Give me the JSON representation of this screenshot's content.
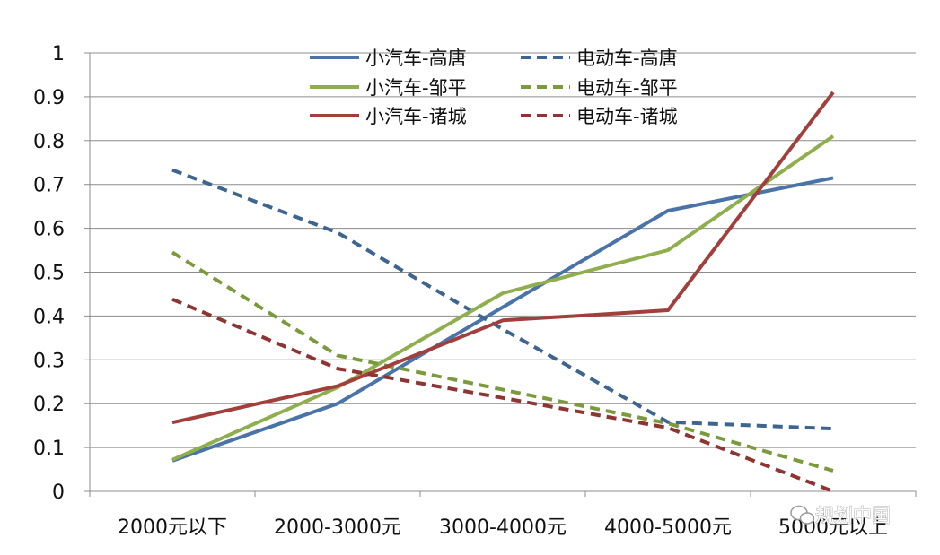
{
  "chart_data": {
    "type": "line",
    "title": "",
    "xlabel": "",
    "ylabel": "",
    "categories": [
      "2000元以下",
      "2000-3000元",
      "3000-4000元",
      "4000-5000元",
      "5000元以上"
    ],
    "ylim": [
      0,
      1
    ],
    "yticks": [
      "0",
      "0.1",
      "0.2",
      "0.3",
      "0.4",
      "0.5",
      "0.6",
      "0.7",
      "0.8",
      "0.9",
      "1"
    ],
    "grid": true,
    "legend_position": "top-center",
    "series": [
      {
        "name": "小汽车-高唐",
        "color": "#4a73a8",
        "dashed": false,
        "values": [
          0.07,
          0.2,
          0.42,
          0.64,
          0.715
        ]
      },
      {
        "name": "电动车-高唐",
        "color": "#3d6590",
        "dashed": true,
        "values": [
          0.733,
          0.59,
          0.37,
          0.158,
          0.143
        ]
      },
      {
        "name": "小汽车-邹平",
        "color": "#8fae4e",
        "dashed": false,
        "values": [
          0.072,
          0.237,
          0.452,
          0.55,
          0.81
        ]
      },
      {
        "name": "电动车-邹平",
        "color": "#7b9a3c",
        "dashed": true,
        "values": [
          0.545,
          0.31,
          0.232,
          0.155,
          0.047
        ]
      },
      {
        "name": "小汽车-诸城",
        "color": "#a23e3b",
        "dashed": false,
        "values": [
          0.157,
          0.24,
          0.39,
          0.413,
          0.91
        ]
      },
      {
        "name": "电动车-诸城",
        "color": "#8e3432",
        "dashed": true,
        "values": [
          0.438,
          0.28,
          0.213,
          0.145,
          0.0
        ]
      }
    ]
  },
  "watermark": {
    "text": "规划中国",
    "icon": "wechat-icon"
  }
}
